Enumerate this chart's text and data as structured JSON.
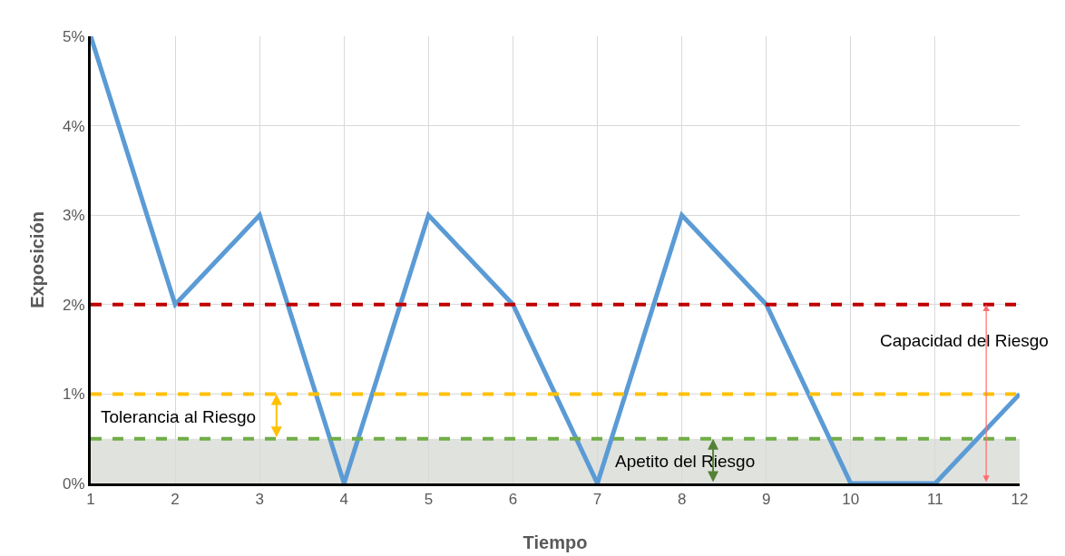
{
  "chart_data": {
    "type": "line",
    "xlabel": "Tiempo",
    "ylabel": "Exposición",
    "x": [
      1,
      2,
      3,
      4,
      5,
      6,
      7,
      8,
      9,
      10,
      11,
      12
    ],
    "series": [
      {
        "color": "#5b9bd5",
        "values": [
          5,
          2,
          3,
          0,
          3,
          2,
          0,
          3,
          2,
          0,
          0,
          1
        ]
      }
    ],
    "xlim": [
      1,
      12
    ],
    "xticks": [
      1,
      2,
      3,
      4,
      5,
      6,
      7,
      8,
      9,
      10,
      11,
      12
    ],
    "ylim": [
      0,
      5
    ],
    "yticks": [
      {
        "value": 0,
        "label": "0%"
      },
      {
        "value": 1,
        "label": "1%"
      },
      {
        "value": 2,
        "label": "2%"
      },
      {
        "value": 3,
        "label": "3%"
      },
      {
        "value": 4,
        "label": "4%"
      },
      {
        "value": 5,
        "label": "5%"
      }
    ],
    "grid": true,
    "marker": "none",
    "line_style": "solid",
    "ref_lines": [
      {
        "axis": "y",
        "value": 2,
        "color": "#c00000",
        "line_style": "dashed",
        "label": "Capacidad del Riesgo"
      },
      {
        "axis": "y",
        "value": 1,
        "color": "#ffc000",
        "line_style": "dashed",
        "label": "Tolerancia al Riesgo"
      },
      {
        "axis": "y",
        "value": 0.5,
        "color": "#70ad47",
        "line_style": "dashed",
        "label": "Apetito del Riesgo"
      }
    ],
    "bands": [
      {
        "axis": "y",
        "from": 0,
        "to": 0.5,
        "color": "#e0e2de"
      }
    ]
  }
}
